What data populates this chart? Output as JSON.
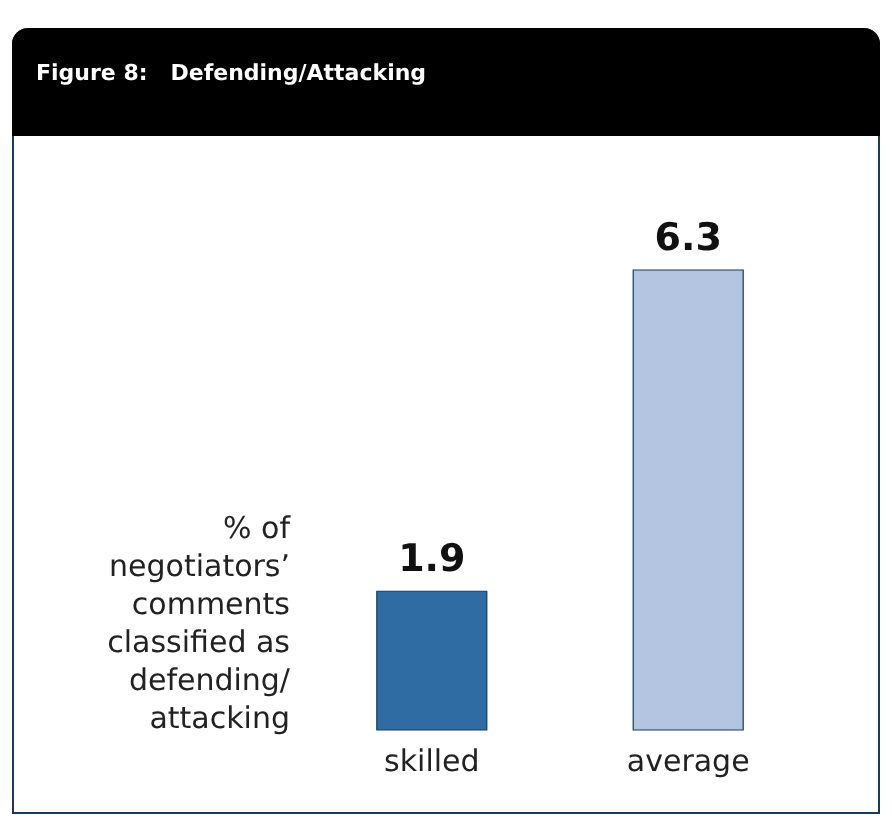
{
  "chart_data": {
    "type": "bar",
    "title": "Figure 8:   Defending/Attacking",
    "ylabel": "% of negotiators’ comments classified as defending/ attacking",
    "categories": [
      "skilled",
      "average"
    ],
    "values": [
      1.9,
      6.3
    ],
    "colors": [
      "#2f6ca3",
      "#b3c5e0"
    ],
    "data_labels": true
  }
}
